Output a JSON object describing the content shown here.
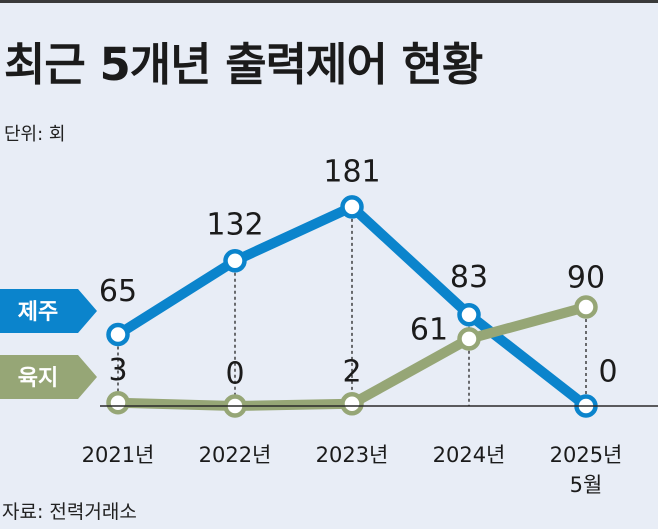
{
  "title": "최근 5개년 출력제어 현황",
  "unit": "단위: 회",
  "source": "자료: 전력거래소",
  "colors": {
    "jeju": "#0b84cc",
    "land": "#96a676",
    "background": "#e8edf6"
  },
  "chart_data": {
    "type": "line",
    "title": "최근 5개년 출력제어 현황",
    "unit": "단위: 회",
    "categories": [
      "2021년",
      "2022년",
      "2023년",
      "2024년",
      "2025년\n5월"
    ],
    "series": [
      {
        "name": "제주",
        "values": [
          65,
          132,
          181,
          83,
          0
        ]
      },
      {
        "name": "육지",
        "values": [
          3,
          0,
          2,
          61,
          90
        ]
      }
    ],
    "data_labels": {
      "제주": [
        "65",
        "132",
        "181",
        "83",
        "0"
      ],
      "육지": [
        "3",
        "0",
        "2",
        "61",
        "90"
      ]
    },
    "legend": "left, inline tags",
    "grid": false
  }
}
